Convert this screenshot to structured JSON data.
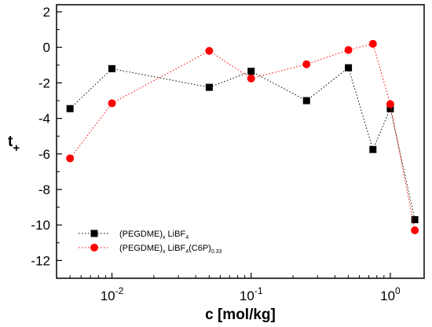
{
  "chart_data": {
    "type": "line",
    "xscale": "log",
    "xlim": [
      0.004,
      1.75
    ],
    "ylim": [
      -13,
      2.4
    ],
    "yticks": [
      2,
      0,
      -2,
      -4,
      -6,
      -8,
      -10,
      -12
    ],
    "ytick_labels": [
      "2",
      "0",
      "-2",
      "-4",
      "-6",
      "-8",
      "-10",
      "-12"
    ],
    "xticks": [
      0.01,
      0.1,
      1
    ],
    "xtick_labels": [
      {
        "base": "10",
        "exp": "-2"
      },
      {
        "base": "10",
        "exp": "-1"
      },
      {
        "base": "10",
        "exp": "0"
      }
    ],
    "xlabel": "c [mol/kg]",
    "ylabel": {
      "main": "t",
      "sub": "+"
    },
    "legend_position": "lower-left",
    "series": [
      {
        "legend_parts": [
          {
            "text": "(PEGDME)"
          },
          {
            "text": "x",
            "sub": true
          },
          {
            "text": " LiBF"
          },
          {
            "text": "4",
            "sub": true
          }
        ],
        "color": "#000000",
        "marker": "square",
        "x": [
          0.005,
          0.01,
          0.05,
          0.1,
          0.25,
          0.5,
          0.75,
          1.0,
          1.5
        ],
        "y": [
          -3.45,
          -1.2,
          -2.25,
          -1.35,
          -3.0,
          -1.15,
          -5.75,
          -3.45,
          -9.7
        ]
      },
      {
        "legend_parts": [
          {
            "text": "(PEGDME)"
          },
          {
            "text": "x",
            "sub": true
          },
          {
            "text": " LiBF"
          },
          {
            "text": "4",
            "sub": true
          },
          {
            "text": "(C6P)"
          },
          {
            "text": "0.33",
            "sub": true
          }
        ],
        "color": "#ff0000",
        "marker": "circle",
        "x": [
          0.005,
          0.01,
          0.05,
          0.1,
          0.25,
          0.5,
          0.75,
          1.0,
          1.5
        ],
        "y": [
          -6.25,
          -3.15,
          -0.2,
          -1.75,
          -0.95,
          -0.15,
          0.2,
          -3.2,
          -10.3
        ]
      }
    ]
  }
}
